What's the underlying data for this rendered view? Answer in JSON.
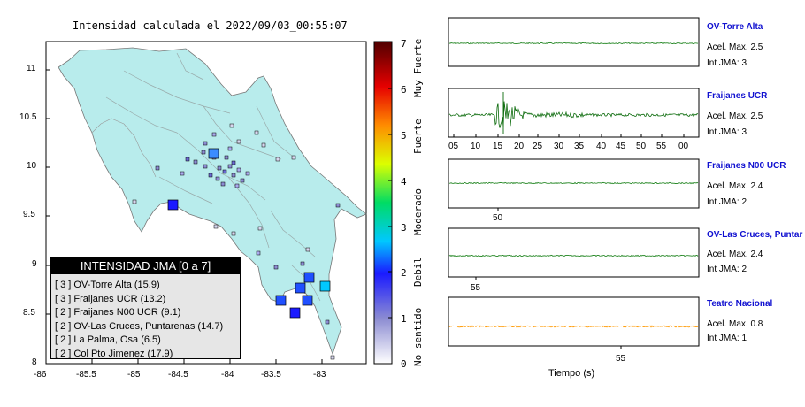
{
  "map": {
    "title": "Intensidad calculada el 2022/09/03_00:55:07",
    "x_ticks": [
      "-86",
      "-85.5",
      "-85",
      "-84.5",
      "-84",
      "-83.5",
      "-83"
    ],
    "y_ticks": [
      "11",
      "10.5",
      "10",
      "9.5",
      "9",
      "8.5",
      "8"
    ],
    "legend_title": "INTENSIDAD JMA [0 a 7]",
    "legend_items": [
      "[ 3 ]  OV-Torre Alta (15.9)",
      "[ 3 ]  Fraijanes UCR (13.2)",
      "[ 2 ]  Fraijanes N00 UCR (9.1)",
      "[ 2 ]  OV-Las Cruces, Puntarenas (14.7)",
      "[ 2 ]  La Palma, Osa (6.5)",
      "[ 2 ]  Col Pto Jimenez (17.9)"
    ]
  },
  "colorbar": {
    "ticks": [
      "7",
      "6",
      "5",
      "4",
      "3",
      "2",
      "1",
      "0"
    ],
    "categories": [
      "Muy Fuerte",
      "Fuerte",
      "Moderado",
      "Debil",
      "No sentido"
    ],
    "colors": [
      "#ffffff",
      "#8c8cd2",
      "#1a1aff",
      "#00c8ff",
      "#00dc64",
      "#dcff00",
      "#ff8c00",
      "#e60000",
      "#500000"
    ]
  },
  "stations": [
    {
      "name": "OV-Torre Alta",
      "acel": "Acel. Max. 2.5",
      "jma": "Int JMA: 3",
      "color": "#2a8a2a"
    },
    {
      "name": "Fraijanes UCR",
      "acel": "Acel. Max. 2.5",
      "jma": "Int JMA: 3",
      "color": "#0a6a0a"
    },
    {
      "name": "Fraijanes N00 UCR",
      "acel": "Acel. Max. 2.4",
      "jma": "Int JMA: 2",
      "color": "#2a8a2a"
    },
    {
      "name": "OV-Las Cruces, Puntar",
      "acel": "Acel. Max. 2.4",
      "jma": "Int JMA: 2",
      "color": "#2a8a2a"
    },
    {
      "name": "Teatro Nacional",
      "acel": "Acel. Max. 0.8",
      "jma": "Int JMA: 1",
      "color": "#ff9900"
    }
  ],
  "time_axis": {
    "labels": [
      "05",
      "10",
      "15",
      "20",
      "25",
      "30",
      "35",
      "40",
      "45",
      "50",
      "55",
      "00"
    ],
    "panel3_label": "50",
    "panel4_label": "55",
    "panel5_label": "55",
    "xlabel": "Tiempo (s)"
  },
  "icons": {
    "markers": "square-marker-icon"
  }
}
